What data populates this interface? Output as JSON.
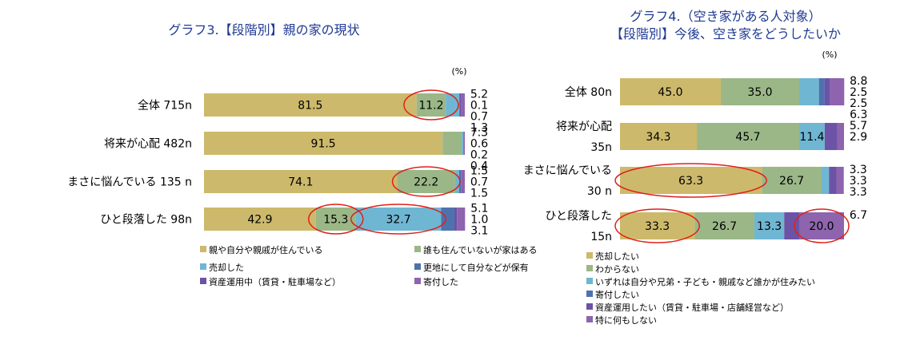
{
  "charts": [
    {
      "title_lines": [
        "グラフ3.【段階別】親の家の現状"
      ],
      "unit": "(%)",
      "type": "stacked-bar-horizontal",
      "categories": [
        "全体 715n",
        "将来が心配 482n",
        "まさに悩んでいる 135 n",
        "ひと段落した 98n"
      ],
      "series": [
        {
          "name": "親や自分や親戚が住んでいる",
          "color": "#cdb96b",
          "values": [
            81.5,
            91.5,
            74.1,
            42.9
          ]
        },
        {
          "name": "誰も住んでいないが家はある",
          "color": "#9bb787",
          "values": [
            11.2,
            7.3,
            22.2,
            15.3
          ]
        },
        {
          "name": "売却した",
          "color": "#6fb6d3",
          "values": [
            5.2,
            0.6,
            1.5,
            32.7
          ]
        },
        {
          "name": "更地にして自分などが保有",
          "color": "#4d72ae",
          "values": [
            0.1,
            0.2,
            0.7,
            5.1
          ]
        },
        {
          "name": "資産運用中（賃貸・駐車場など）",
          "color": "#6c53a6",
          "values": [
            0.7,
            0.0,
            0.0,
            1.0
          ]
        },
        {
          "name": "寄付した",
          "color": "#8d64ad",
          "values": [
            1.3,
            0.4,
            1.5,
            3.1
          ]
        }
      ],
      "labels": [
        [
          "81.5",
          "11.2",
          "5.2",
          "0.1",
          "0.7",
          "1.3"
        ],
        [
          "91.5",
          "7.3",
          "0.6",
          "0.2",
          "",
          "0.4"
        ],
        [
          "74.1",
          "22.2",
          "1.5",
          "0.7",
          "",
          "1.5"
        ],
        [
          "42.9",
          "15.3",
          "32.7",
          "5.1",
          "1.0",
          "3.1"
        ]
      ],
      "highlighted": [
        [
          0,
          1
        ],
        [
          2,
          1
        ],
        [
          3,
          1
        ],
        [
          3,
          2
        ]
      ]
    },
    {
      "title_lines": [
        "グラフ4.（空き家がある人対象）",
        "【段階別】今後、空き家をどうしたいか"
      ],
      "unit": "(%)",
      "type": "stacked-bar-horizontal",
      "categories": [
        [
          "全体 80n"
        ],
        [
          "将来が心配",
          "35n"
        ],
        [
          "まさに悩んでいる",
          "30 n"
        ],
        [
          "ひと段落した",
          "15n"
        ]
      ],
      "series": [
        {
          "name": "売却したい",
          "color": "#cdb96b",
          "values": [
            45.0,
            34.3,
            63.3,
            33.3
          ]
        },
        {
          "name": "わからない",
          "color": "#9bb787",
          "values": [
            35.0,
            45.7,
            26.7,
            26.7
          ]
        },
        {
          "name": "いずれは自分や兄弟・子ども・親戚など誰かが住みたい",
          "color": "#6fb6d3",
          "values": [
            8.8,
            11.4,
            3.3,
            13.3
          ]
        },
        {
          "name": "寄付したい",
          "color": "#4d72ae",
          "values": [
            2.5,
            0.0,
            0.0,
            0.0
          ]
        },
        {
          "name": "資産運用したい（賃貸・駐車場・店舗経営など）",
          "color": "#6c53a6",
          "values": [
            2.5,
            5.7,
            3.3,
            6.7
          ]
        },
        {
          "name": "特に何もしない",
          "color": "#8d64ad",
          "values": [
            6.3,
            2.9,
            3.3,
            20.0
          ]
        }
      ],
      "labels": [
        [
          "45.0",
          "35.0",
          "8.8",
          "2.5",
          "2.5",
          "6.3"
        ],
        [
          "34.3",
          "45.7",
          "11.4",
          "",
          "5.7",
          "2.9"
        ],
        [
          "63.3",
          "26.7",
          "3.3",
          "",
          "3.3",
          "3.3"
        ],
        [
          "33.3",
          "26.7",
          "13.3",
          "",
          "6.7",
          "20.0"
        ]
      ],
      "highlighted": [
        [
          2,
          0
        ],
        [
          3,
          0
        ],
        [
          3,
          5
        ]
      ]
    }
  ]
}
